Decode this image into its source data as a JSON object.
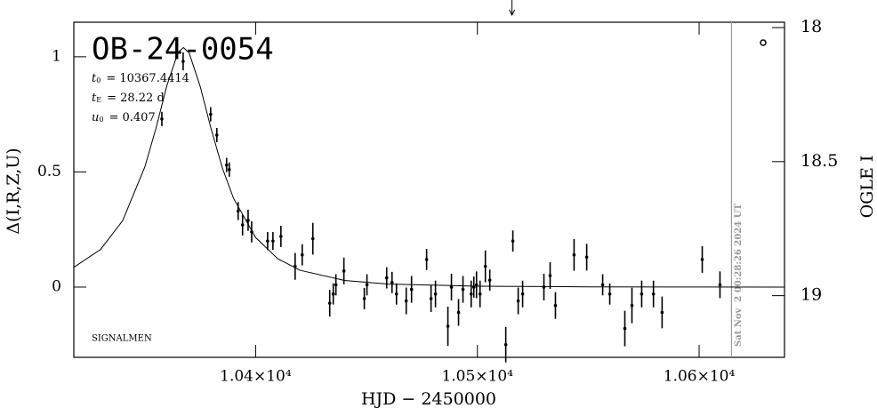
{
  "chart_data": {
    "type": "scatter",
    "title": "OB-24-0054",
    "parameters": [
      {
        "symbol": "t",
        "subscript": "0",
        "text": "= 10367.4414"
      },
      {
        "symbol": "t",
        "subscript": "E",
        "text": "= 28.22 d"
      },
      {
        "symbol": "u",
        "subscript": "0",
        "text": "= 0.407"
      }
    ],
    "annotation": "SIGNALMEN",
    "timestamp": "Sat Nov  2 00:28:26 2024 UT",
    "timestamp_x": 10614.6,
    "arrow_x": 10515.6,
    "xlabel": "HJD − 2450000",
    "ylabel": "Δ(I,R,Z,U)",
    "y2label": "OGLE I",
    "color": "#000000",
    "xlim": [
      10318,
      10638.5
    ],
    "ylim": [
      -0.305,
      1.15
    ],
    "y2lim": [
      19.23,
      17.98
    ],
    "xticks": [
      {
        "value": 10400,
        "label": "1.04×10⁴"
      },
      {
        "value": 10500,
        "label": "1.05×10⁴"
      },
      {
        "value": 10600,
        "label": "1.06×10⁴"
      }
    ],
    "yticks": [
      0,
      0.5,
      1
    ],
    "y2ticks": [
      18,
      18.5,
      19
    ],
    "x": [
      10357.7,
      10367.3,
      10379.7,
      10382.5,
      10386.9,
      10388.1,
      10392.1,
      10394.1,
      10396.6,
      10398.2,
      10405.4,
      10407.8,
      10411.4,
      10417.8,
      10421.0,
      10425.8,
      10433.4,
      10435.0,
      10436.2,
      10439.8,
      10449.0,
      10450.2,
      10459.1,
      10461.5,
      10463.5,
      10467.9,
      10470.3,
      10477.1,
      10479.1,
      10481.1,
      10486.7,
      10488.3,
      10491.5,
      10493.5,
      10497.2,
      10498.4,
      10499.6,
      10501.2,
      10503.6,
      10505.6,
      10512.8,
      10516.0,
      10518.4,
      10520.4,
      10530.0,
      10532.8,
      10535.2,
      10543.6,
      10549.3,
      10556.5,
      10559.7,
      10566.5,
      10569.7,
      10574.1,
      10579.4,
      10583.3,
      10601.4,
      10609.4
    ],
    "values": [
      0.73,
      0.98,
      0.75,
      0.66,
      0.53,
      0.51,
      0.33,
      0.27,
      0.29,
      0.24,
      0.2,
      0.2,
      0.22,
      0.09,
      0.14,
      0.21,
      -0.07,
      -0.03,
      0.01,
      0.07,
      -0.05,
      0.01,
      0.04,
      0.02,
      -0.03,
      -0.06,
      -0.01,
      0.12,
      -0.05,
      -0.03,
      -0.17,
      0.0,
      -0.11,
      -0.01,
      -0.03,
      0.0,
      0.01,
      -0.03,
      0.09,
      0.03,
      -0.25,
      0.2,
      -0.06,
      -0.03,
      0.0,
      0.05,
      -0.08,
      0.14,
      0.13,
      0.01,
      -0.03,
      -0.18,
      -0.08,
      -0.03,
      -0.03,
      -0.11,
      0.12,
      0.01
    ],
    "errors": [
      0.031,
      0.039,
      0.031,
      0.031,
      0.031,
      0.031,
      0.039,
      0.046,
      0.046,
      0.046,
      0.039,
      0.039,
      0.046,
      0.058,
      0.046,
      0.069,
      0.058,
      0.046,
      0.046,
      0.058,
      0.046,
      0.046,
      0.046,
      0.046,
      0.046,
      0.058,
      0.058,
      0.046,
      0.058,
      0.058,
      0.085,
      0.058,
      0.058,
      0.058,
      0.058,
      0.046,
      0.058,
      0.058,
      0.069,
      0.046,
      0.077,
      0.046,
      0.058,
      0.058,
      0.058,
      0.058,
      0.058,
      0.069,
      0.058,
      0.046,
      0.046,
      0.077,
      0.077,
      0.058,
      0.058,
      0.069,
      0.058,
      0.058
    ],
    "model": {
      "x": [
        10318,
        10330,
        10340,
        10350,
        10355,
        10360,
        10365,
        10367.44,
        10370,
        10375,
        10380,
        10385,
        10390,
        10400,
        10410,
        10420,
        10440,
        10460,
        10500,
        10550,
        10600,
        10638.5
      ],
      "values": [
        0.086,
        0.163,
        0.288,
        0.521,
        0.688,
        0.876,
        1.019,
        1.04,
        1.017,
        0.871,
        0.684,
        0.517,
        0.386,
        0.215,
        0.123,
        0.073,
        0.029,
        0.013,
        0.004,
        0.001,
        0.0005,
        0.0
      ]
    }
  }
}
